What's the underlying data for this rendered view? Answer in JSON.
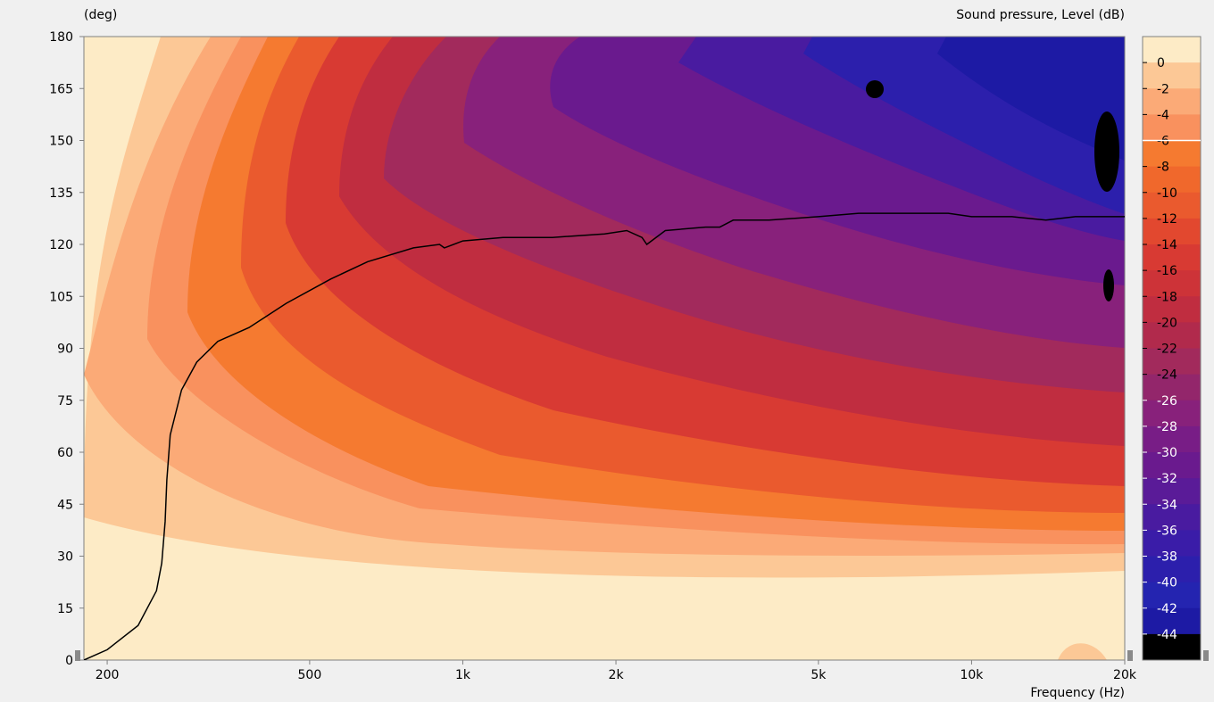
{
  "chart_data": {
    "type": "heatmap",
    "title": "Sound pressure, Level  (dB)",
    "ylabel": "(deg)",
    "xlabel": "Frequency  (Hz)",
    "x_scale": "log",
    "xlim": [
      180,
      20000
    ],
    "ylim": [
      0,
      180
    ],
    "x_ticks": [
      {
        "value": 200,
        "label": "200"
      },
      {
        "value": 500,
        "label": "500"
      },
      {
        "value": 1000,
        "label": "1k"
      },
      {
        "value": 2000,
        "label": "2k"
      },
      {
        "value": 5000,
        "label": "5k"
      },
      {
        "value": 10000,
        "label": "10k"
      },
      {
        "value": 20000,
        "label": "20k"
      }
    ],
    "y_ticks": [
      0,
      15,
      30,
      45,
      60,
      75,
      90,
      105,
      120,
      135,
      150,
      165,
      180
    ],
    "legend_levels": [
      "0",
      "-2",
      "-4",
      "-6",
      "-8",
      "-10",
      "-12",
      "-14",
      "-16",
      "-18",
      "-20",
      "-22",
      "-24",
      "-26",
      "-28",
      "-30",
      "-32",
      "-34",
      "-36",
      "-38",
      "-40",
      "-42",
      "-44"
    ],
    "legend_colors": [
      "#fdebc6",
      "#fcc896",
      "#fbaa77",
      "#f9915e",
      "#f57a30",
      "#f0682c",
      "#ea5a2e",
      "#e2482f",
      "#d83a33",
      "#cd3338",
      "#c02d40",
      "#b12a4c",
      "#a22a5c",
      "#93266b",
      "#88217b",
      "#781d86",
      "#6a1a8e",
      "#5a1b98",
      "#491ba0",
      "#3a1ca8",
      "#2c1fac",
      "#2424b0",
      "#1d1aa4",
      "#000000"
    ],
    "legend_placement": "right",
    "contour_6db": [
      [
        180,
        0
      ],
      [
        200,
        3
      ],
      [
        230,
        10
      ],
      [
        250,
        20
      ],
      [
        256,
        28
      ],
      [
        260,
        40
      ],
      [
        262,
        52
      ],
      [
        266,
        65
      ],
      [
        280,
        78
      ],
      [
        300,
        86
      ],
      [
        330,
        92
      ],
      [
        380,
        96
      ],
      [
        450,
        103
      ],
      [
        550,
        110
      ],
      [
        650,
        115
      ],
      [
        800,
        119
      ],
      [
        900,
        120
      ],
      [
        920,
        119
      ],
      [
        1000,
        121
      ],
      [
        1200,
        122
      ],
      [
        1500,
        122
      ],
      [
        1900,
        123
      ],
      [
        2100,
        124
      ],
      [
        2250,
        122
      ],
      [
        2300,
        120
      ],
      [
        2500,
        124
      ],
      [
        3000,
        125
      ],
      [
        3200,
        125
      ],
      [
        3400,
        127
      ],
      [
        4000,
        127
      ],
      [
        5000,
        128
      ],
      [
        6000,
        129
      ],
      [
        8000,
        129
      ],
      [
        9000,
        129
      ],
      [
        10000,
        128
      ],
      [
        12000,
        128
      ],
      [
        14000,
        127
      ],
      [
        16000,
        128
      ],
      [
        18000,
        128
      ],
      [
        20000,
        128
      ]
    ]
  }
}
